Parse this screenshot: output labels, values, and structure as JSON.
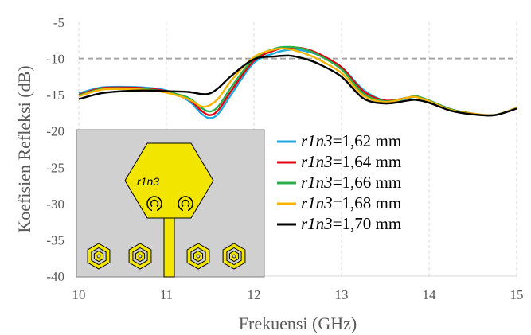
{
  "chart_data": {
    "type": "line",
    "title": "",
    "xlabel": "Frekuensi (GHz)",
    "ylabel": "Koefisien Refleksi (dB)",
    "xlim": [
      10,
      15
    ],
    "ylim": [
      -40,
      -5
    ],
    "xticks": [
      "10",
      "11",
      "12",
      "13",
      "14",
      "15"
    ],
    "yticks": [
      "-5",
      "-10",
      "-15",
      "-20",
      "-25",
      "-30",
      "-35",
      "-40"
    ],
    "grid": "vertical, dashed",
    "legend_position": "bottom-right",
    "reference_line": {
      "y": -10,
      "style": "dashed",
      "color": "#a6a6a6"
    },
    "legend_prefix": "r1n3",
    "x": [
      10.0,
      10.25,
      10.5,
      10.75,
      11.0,
      11.25,
      11.4,
      11.5,
      11.6,
      11.75,
      12.0,
      12.25,
      12.4,
      12.5,
      12.6,
      12.75,
      13.0,
      13.25,
      13.5,
      13.75,
      13.85,
      14.0,
      14.25,
      14.5,
      14.75,
      15.0
    ],
    "series": [
      {
        "name": "=1,62 mm",
        "color": "#1FA9E1",
        "values": [
          -14.8,
          -14.0,
          -13.9,
          -14.0,
          -14.4,
          -15.8,
          -17.6,
          -18.2,
          -17.5,
          -14.8,
          -10.6,
          -9.2,
          -8.8,
          -8.8,
          -9.0,
          -9.6,
          -11.2,
          -14.3,
          -15.8,
          -15.5,
          -15.3,
          -15.8,
          -17.0,
          -17.6,
          -17.8,
          -16.8
        ]
      },
      {
        "name": "=1,64 mm",
        "color": "#E3000F",
        "values": [
          -15.0,
          -14.1,
          -14.0,
          -14.1,
          -14.5,
          -15.6,
          -17.2,
          -17.8,
          -17.0,
          -14.3,
          -10.3,
          -8.8,
          -8.5,
          -8.5,
          -8.7,
          -9.4,
          -11.2,
          -14.5,
          -15.8,
          -15.4,
          -15.2,
          -15.8,
          -17.0,
          -17.6,
          -17.8,
          -16.8
        ]
      },
      {
        "name": "=1,66 mm",
        "color": "#2BAE4B",
        "values": [
          -15.1,
          -14.2,
          -14.1,
          -14.2,
          -14.6,
          -15.4,
          -16.8,
          -17.3,
          -16.5,
          -13.8,
          -10.0,
          -8.6,
          -8.4,
          -8.5,
          -8.8,
          -9.6,
          -11.5,
          -14.8,
          -15.9,
          -15.4,
          -15.2,
          -15.8,
          -17.0,
          -17.6,
          -17.8,
          -16.8
        ]
      },
      {
        "name": "=1,68 mm",
        "color": "#F7B500",
        "values": [
          -15.2,
          -14.3,
          -14.2,
          -14.3,
          -14.7,
          -15.6,
          -16.6,
          -16.4,
          -15.4,
          -12.9,
          -9.8,
          -8.7,
          -8.7,
          -9.0,
          -9.4,
          -10.2,
          -12.0,
          -15.1,
          -16.0,
          -15.4,
          -15.3,
          -15.9,
          -17.1,
          -17.6,
          -17.8,
          -16.8
        ]
      },
      {
        "name": "=1,70 mm",
        "color": "#000000",
        "values": [
          -15.6,
          -14.8,
          -14.5,
          -14.4,
          -14.5,
          -14.6,
          -14.9,
          -14.8,
          -14.0,
          -12.3,
          -10.1,
          -9.7,
          -9.6,
          -9.8,
          -10.1,
          -10.8,
          -12.5,
          -15.5,
          -16.2,
          -15.8,
          -15.7,
          -16.1,
          -17.2,
          -17.7,
          -17.8,
          -16.9
        ]
      }
    ],
    "inset": {
      "label": "r1n3",
      "description_color": "#f2e600"
    }
  }
}
